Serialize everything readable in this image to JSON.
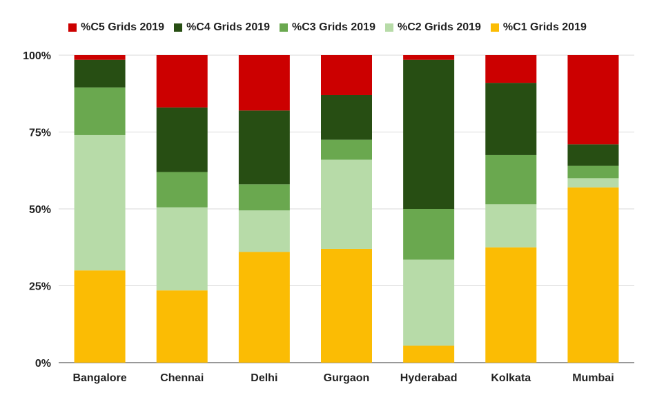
{
  "chart_data": {
    "type": "bar",
    "stacked": "percent",
    "categories": [
      "Bangalore",
      "Chennai",
      "Delhi",
      "Gurgaon",
      "Hyderabad",
      "Kolkata",
      "Mumbai"
    ],
    "series": [
      {
        "name": "%C1 Grids 2019",
        "color": "#fbbc04",
        "values": [
          30,
          23.5,
          36,
          37,
          5.5,
          37.5,
          57
        ]
      },
      {
        "name": "%C2 Grids 2019",
        "color": "#b7dba8",
        "values": [
          44,
          27,
          13.5,
          29,
          28,
          14,
          3
        ]
      },
      {
        "name": "%C3 Grids 2019",
        "color": "#6aa84f",
        "values": [
          15.5,
          11.5,
          8.5,
          6.5,
          16.5,
          16,
          4
        ]
      },
      {
        "name": "%C4 Grids 2019",
        "color": "#274e13",
        "values": [
          9,
          21,
          24,
          14.5,
          48.5,
          23.5,
          7
        ]
      },
      {
        "name": "%C5 Grids 2019",
        "color": "#cc0000",
        "values": [
          1.5,
          17,
          18,
          13,
          1.5,
          9,
          29
        ]
      }
    ],
    "legend_order": [
      4,
      3,
      2,
      1,
      0
    ],
    "y_ticks": [
      "0%",
      "25%",
      "50%",
      "75%",
      "100%"
    ],
    "ylim": [
      0,
      100
    ],
    "grid": true,
    "legend_position": "top"
  }
}
